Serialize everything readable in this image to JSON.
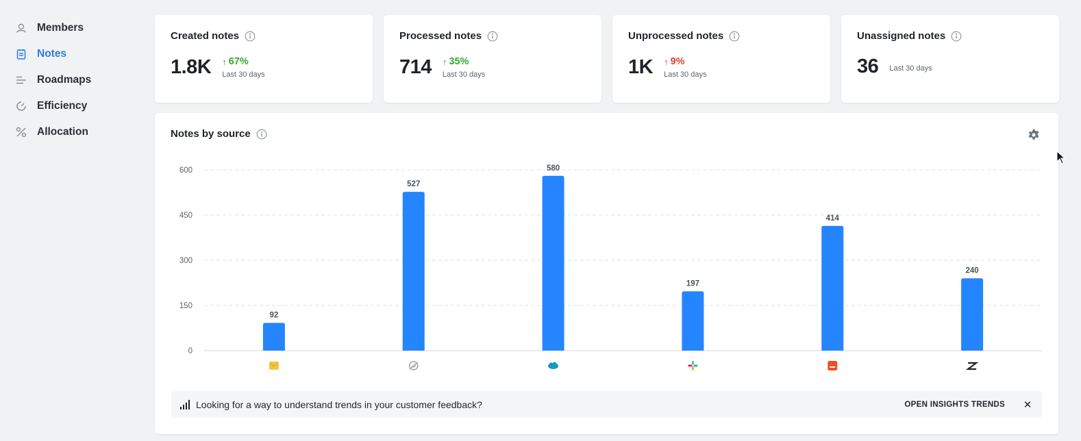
{
  "sidebar": {
    "items": [
      {
        "label": "Members",
        "icon": "members-icon",
        "active": false
      },
      {
        "label": "Notes",
        "icon": "notes-icon",
        "active": true
      },
      {
        "label": "Roadmaps",
        "icon": "roadmaps-icon",
        "active": false
      },
      {
        "label": "Efficiency",
        "icon": "efficiency-icon",
        "active": false
      },
      {
        "label": "Allocation",
        "icon": "allocation-icon",
        "active": false
      }
    ]
  },
  "stats": [
    {
      "title": "Created notes",
      "value": "1.8K",
      "change": "67%",
      "direction": "up",
      "change_color": "#3aa830",
      "period": "Last 30 days"
    },
    {
      "title": "Processed notes",
      "value": "714",
      "change": "35%",
      "direction": "up",
      "change_color": "#3aa830",
      "period": "Last 30 days"
    },
    {
      "title": "Unprocessed notes",
      "value": "1K",
      "change": "9%",
      "direction": "up",
      "change_color": "#e0442f",
      "period": "Last 30 days"
    },
    {
      "title": "Unassigned notes",
      "value": "36",
      "change": "",
      "period": "Last 30 days"
    }
  ],
  "chart": {
    "title": "Notes by source",
    "settings_icon": "gear-icon"
  },
  "chart_data": {
    "type": "bar",
    "categories": [
      "email",
      "intercom",
      "salesforce",
      "slack",
      "productboard-insights",
      "zendesk"
    ],
    "category_icons": [
      "email-source-icon",
      "intercom-source-icon",
      "salesforce-source-icon",
      "slack-source-icon",
      "orange-source-icon",
      "zendesk-source-icon"
    ],
    "values": [
      92,
      527,
      580,
      197,
      414,
      240
    ],
    "ylim": [
      0,
      600
    ],
    "yticks": [
      0,
      150,
      300,
      450,
      600
    ],
    "bar_color": "#2485ff",
    "grid": true,
    "title": "Notes by source",
    "xlabel": "",
    "ylabel": ""
  },
  "banner": {
    "text": "Looking for a way to understand trends in your customer feedback?",
    "action": "OPEN INSIGHTS TRENDS",
    "close_icon": "close-icon"
  },
  "colors": {
    "accent": "#2f7be5",
    "positive": "#3aa830",
    "negative": "#e0442f"
  }
}
